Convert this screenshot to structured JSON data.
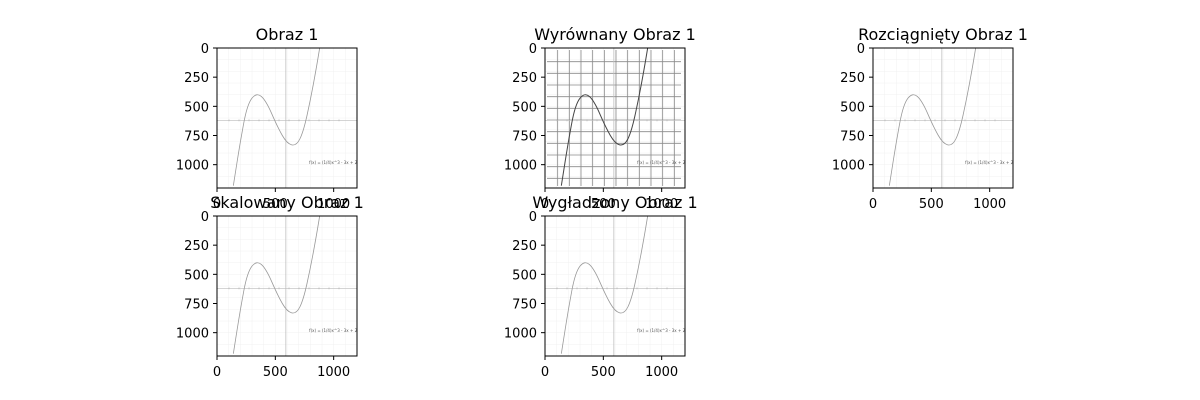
{
  "chart_data": [
    {
      "type": "image",
      "title": "Obraz 1",
      "xticks": [
        "0",
        "500",
        "1000"
      ],
      "yticks": [
        "0",
        "250",
        "500",
        "750",
        "1000"
      ],
      "xlim": [
        0,
        1200
      ],
      "ylim": [
        1200,
        0
      ],
      "dense_grid": false,
      "curve": [
        [
          140,
          1180
        ],
        [
          200,
          800
        ],
        [
          260,
          480
        ],
        [
          340,
          380
        ],
        [
          420,
          450
        ],
        [
          520,
          680
        ],
        [
          600,
          820
        ],
        [
          680,
          840
        ],
        [
          740,
          720
        ],
        [
          800,
          450
        ],
        [
          850,
          180
        ],
        [
          880,
          0
        ]
      ]
    },
    {
      "type": "image",
      "title": "Wyrównany Obraz 1",
      "xticks": [
        "0",
        "500",
        "1000"
      ],
      "yticks": [
        "0",
        "250",
        "500",
        "750",
        "1000"
      ],
      "xlim": [
        0,
        1200
      ],
      "ylim": [
        1200,
        0
      ],
      "dense_grid": true,
      "curve": [
        [
          140,
          1180
        ],
        [
          200,
          800
        ],
        [
          260,
          480
        ],
        [
          340,
          380
        ],
        [
          420,
          450
        ],
        [
          520,
          680
        ],
        [
          600,
          820
        ],
        [
          680,
          840
        ],
        [
          740,
          720
        ],
        [
          800,
          450
        ],
        [
          850,
          180
        ],
        [
          880,
          0
        ]
      ]
    },
    {
      "type": "image",
      "title": "Rozciągnięty Obraz 1",
      "xticks": [
        "0",
        "500",
        "1000"
      ],
      "yticks": [
        "0",
        "250",
        "500",
        "750",
        "1000"
      ],
      "xlim": [
        0,
        1200
      ],
      "ylim": [
        1200,
        0
      ],
      "dense_grid": false,
      "curve": [
        [
          140,
          1180
        ],
        [
          200,
          800
        ],
        [
          260,
          480
        ],
        [
          340,
          380
        ],
        [
          420,
          450
        ],
        [
          520,
          680
        ],
        [
          600,
          820
        ],
        [
          680,
          840
        ],
        [
          740,
          720
        ],
        [
          800,
          450
        ],
        [
          850,
          180
        ],
        [
          880,
          0
        ]
      ]
    },
    {
      "type": "image",
      "title": "Skalowany Obraz 1",
      "xticks": [
        "0",
        "500",
        "1000"
      ],
      "yticks": [
        "0",
        "250",
        "500",
        "750",
        "1000"
      ],
      "xlim": [
        0,
        1200
      ],
      "ylim": [
        1200,
        0
      ],
      "dense_grid": false,
      "curve": [
        [
          140,
          1180
        ],
        [
          200,
          800
        ],
        [
          260,
          480
        ],
        [
          340,
          380
        ],
        [
          420,
          450
        ],
        [
          520,
          680
        ],
        [
          600,
          820
        ],
        [
          680,
          840
        ],
        [
          740,
          720
        ],
        [
          800,
          450
        ],
        [
          850,
          180
        ],
        [
          880,
          0
        ]
      ]
    },
    {
      "type": "image",
      "title": "Wygładzony Obraz 1",
      "xticks": [
        "0",
        "500",
        "1000"
      ],
      "yticks": [
        "0",
        "250",
        "500",
        "750",
        "1000"
      ],
      "xlim": [
        0,
        1200
      ],
      "ylim": [
        1200,
        0
      ],
      "dense_grid": false,
      "curve": [
        [
          140,
          1180
        ],
        [
          200,
          800
        ],
        [
          260,
          480
        ],
        [
          340,
          380
        ],
        [
          420,
          450
        ],
        [
          520,
          680
        ],
        [
          600,
          820
        ],
        [
          680,
          840
        ],
        [
          740,
          720
        ],
        [
          800,
          450
        ],
        [
          850,
          180
        ],
        [
          880,
          0
        ]
      ]
    }
  ],
  "formula_text": "f(x) = (1/4)x^3 - 3x + 2"
}
